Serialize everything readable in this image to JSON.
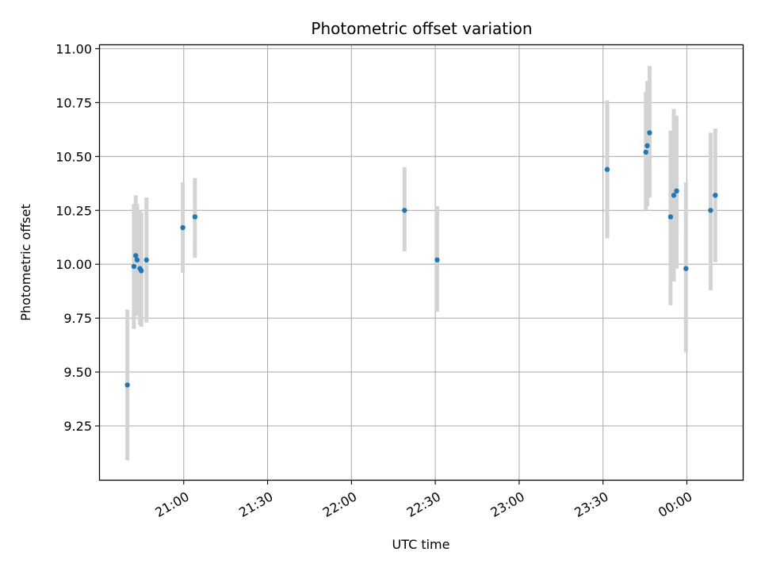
{
  "chart_data": {
    "type": "scatter",
    "title": "Photometric offset variation",
    "xlabel": "UTC time",
    "ylabel": "Photometric offset",
    "x_axis": {
      "kind": "time",
      "range": [
        "20:30",
        "00:20"
      ],
      "ticks": [
        "21:00",
        "21:30",
        "22:00",
        "22:30",
        "23:00",
        "23:30",
        "00:00"
      ]
    },
    "y_axis": {
      "range": [
        9.0,
        11.02
      ],
      "ticks": [
        "9.25",
        "9.50",
        "9.75",
        "10.00",
        "10.25",
        "10.50",
        "10.75",
        "11.00"
      ]
    },
    "grid": true,
    "colors": {
      "points": "#1f77b4",
      "errorbars": "#d3d3d3",
      "grid": "#b0b0b0"
    },
    "points": [
      {
        "x": "20:39:50",
        "y": 9.44,
        "ylow": 9.09,
        "yhigh": 9.79
      },
      {
        "x": "20:42:10",
        "y": 9.99,
        "ylow": 9.7,
        "yhigh": 10.28
      },
      {
        "x": "20:42:50",
        "y": 10.04,
        "ylow": 9.77,
        "yhigh": 10.32
      },
      {
        "x": "20:43:20",
        "y": 10.02,
        "ylow": 9.76,
        "yhigh": 10.28
      },
      {
        "x": "20:44:20",
        "y": 9.98,
        "ylow": 9.72,
        "yhigh": 10.25
      },
      {
        "x": "20:44:50",
        "y": 9.97,
        "ylow": 9.71,
        "yhigh": 10.24
      },
      {
        "x": "20:46:40",
        "y": 10.02,
        "ylow": 9.73,
        "yhigh": 10.31
      },
      {
        "x": "20:59:40",
        "y": 10.17,
        "ylow": 9.96,
        "yhigh": 10.38
      },
      {
        "x": "21:04:00",
        "y": 10.22,
        "ylow": 10.03,
        "yhigh": 10.4
      },
      {
        "x": "22:19:00",
        "y": 10.25,
        "ylow": 10.06,
        "yhigh": 10.45
      },
      {
        "x": "22:30:40",
        "y": 10.02,
        "ylow": 9.78,
        "yhigh": 10.27
      },
      {
        "x": "23:31:30",
        "y": 10.44,
        "ylow": 10.12,
        "yhigh": 10.76
      },
      {
        "x": "23:45:20",
        "y": 10.52,
        "ylow": 10.25,
        "yhigh": 10.8
      },
      {
        "x": "23:45:50",
        "y": 10.55,
        "ylow": 10.27,
        "yhigh": 10.85
      },
      {
        "x": "23:46:40",
        "y": 10.61,
        "ylow": 10.31,
        "yhigh": 10.92
      },
      {
        "x": "23:54:10",
        "y": 10.22,
        "ylow": 9.81,
        "yhigh": 10.62
      },
      {
        "x": "23:55:20",
        "y": 10.32,
        "ylow": 9.92,
        "yhigh": 10.72
      },
      {
        "x": "23:56:20",
        "y": 10.34,
        "ylow": 9.98,
        "yhigh": 10.69
      },
      {
        "x": "23:59:40",
        "y": 9.98,
        "ylow": 9.59,
        "yhigh": 10.38
      },
      {
        "x": "00:08:30",
        "y": 10.25,
        "ylow": 9.88,
        "yhigh": 10.61
      },
      {
        "x": "00:10:10",
        "y": 10.32,
        "ylow": 10.01,
        "yhigh": 10.63
      }
    ]
  }
}
